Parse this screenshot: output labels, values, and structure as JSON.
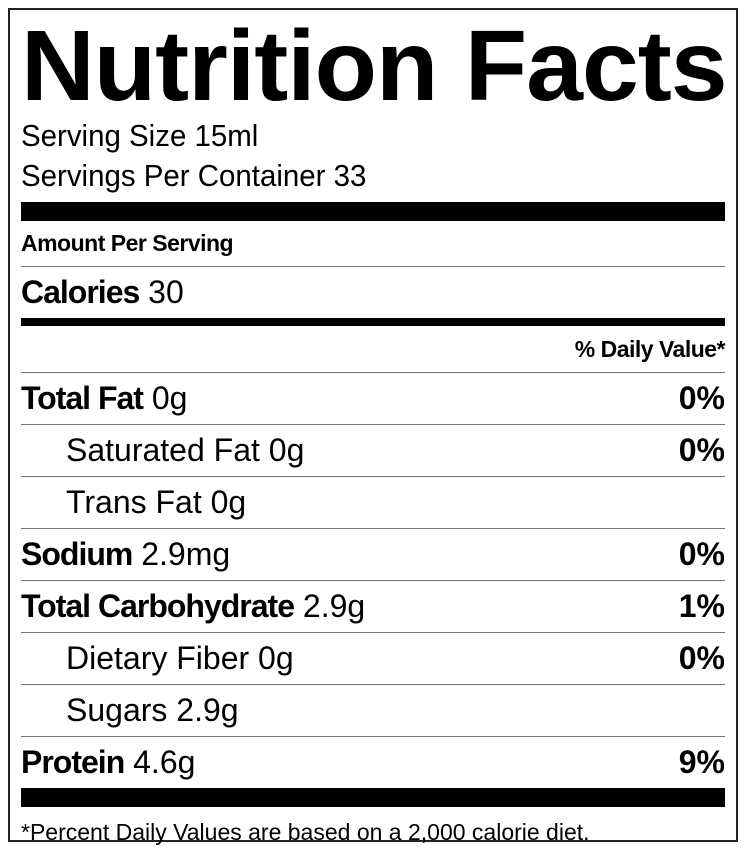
{
  "title": "Nutrition Facts",
  "serving_size": "Serving Size 15ml",
  "servings_per_container": "Servings Per Container 33",
  "amount_per_serving": "Amount Per Serving",
  "calories": {
    "label": "Calories",
    "value": "30"
  },
  "daily_value_header": "% Daily Value*",
  "nutrients": [
    {
      "label": "Total Fat",
      "amount": "0g",
      "dv": "0%"
    },
    {
      "label": "Saturated Fat",
      "amount": "0g",
      "dv": "0%"
    },
    {
      "label": "Trans Fat",
      "amount": "0g",
      "dv": ""
    },
    {
      "label": "Sodium",
      "amount": "2.9mg",
      "dv": "0%"
    },
    {
      "label": "Total Carbohydrate",
      "amount": "2.9g",
      "dv": "1%"
    },
    {
      "label": "Dietary Fiber",
      "amount": "0g",
      "dv": "0%"
    },
    {
      "label": "Sugars",
      "amount": "2.9g",
      "dv": ""
    },
    {
      "label": "Protein",
      "amount": "4.6g",
      "dv": "9%"
    }
  ],
  "footnote": "*Percent Daily Values are based on a 2,000 calorie diet."
}
